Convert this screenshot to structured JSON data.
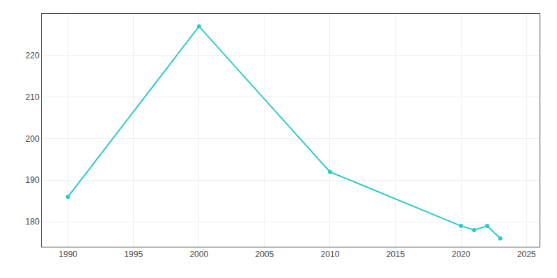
{
  "chart_data": {
    "type": "line",
    "x": [
      1990,
      2000,
      2010,
      2020,
      2021,
      2022,
      2023
    ],
    "values": [
      186,
      227,
      192,
      179,
      178,
      179,
      176
    ],
    "color": "#2dc9c9",
    "marker": "circle",
    "xlim": [
      1988,
      2026
    ],
    "ylim": [
      174,
      230
    ],
    "xticks": [
      1990,
      1995,
      2000,
      2005,
      2010,
      2015,
      2020,
      2025
    ],
    "yticks": [
      180,
      190,
      200,
      210,
      220
    ],
    "grid": true
  }
}
